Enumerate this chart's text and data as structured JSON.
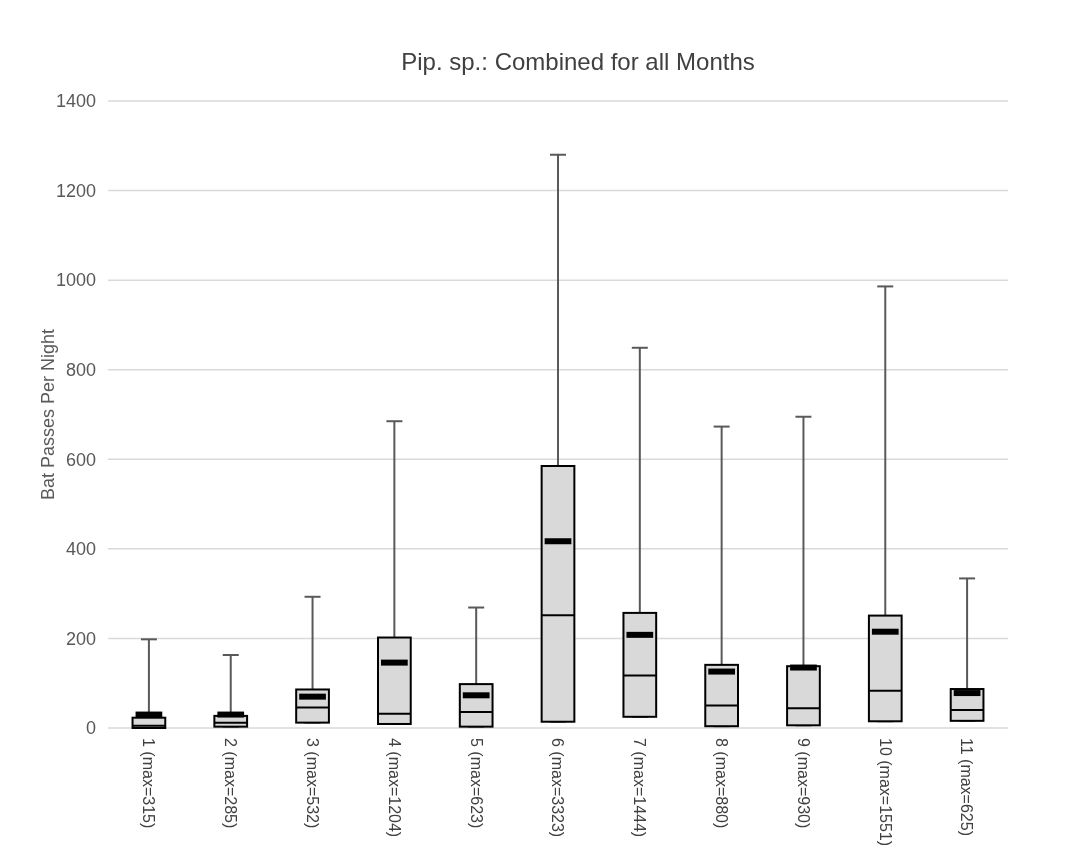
{
  "chart_data": {
    "type": "box",
    "title": "Pip. sp.: Combined for all Months",
    "ylabel": "Bat Passes Per Night",
    "categories": [
      "1 (max=315)",
      "2 (max=285)",
      "3 (max=532)",
      "4 (max=1204)",
      "5 (max=623)",
      "6 (max=3323)",
      "7 (max=1444)",
      "8 (max=880)",
      "9 (max=930)",
      "10 (max=1551)",
      "11 (max=625)"
    ],
    "boxes": [
      {
        "low": 0,
        "q1": 0,
        "median": 5,
        "q3": 23,
        "high": 198,
        "mean": 30
      },
      {
        "low": 3,
        "q1": 3,
        "median": 12,
        "q3": 27,
        "high": 163,
        "mean": 30
      },
      {
        "low": 12,
        "q1": 12,
        "median": 46,
        "q3": 86,
        "high": 293,
        "mean": 70
      },
      {
        "low": 9,
        "q1": 9,
        "median": 32,
        "q3": 202,
        "high": 685,
        "mean": 146
      },
      {
        "low": 3,
        "q1": 3,
        "median": 36,
        "q3": 98,
        "high": 269,
        "mean": 73
      },
      {
        "low": 14,
        "q1": 14,
        "median": 252,
        "q3": 585,
        "high": 1280,
        "mean": 417
      },
      {
        "low": 25,
        "q1": 25,
        "median": 117,
        "q3": 257,
        "high": 849,
        "mean": 208
      },
      {
        "low": 4,
        "q1": 4,
        "median": 50,
        "q3": 141,
        "high": 673,
        "mean": 126
      },
      {
        "low": 6,
        "q1": 6,
        "median": 44,
        "q3": 138,
        "high": 695,
        "mean": 135
      },
      {
        "low": 15,
        "q1": 15,
        "median": 83,
        "q3": 251,
        "high": 986,
        "mean": 215
      },
      {
        "low": 16,
        "q1": 16,
        "median": 40,
        "q3": 87,
        "high": 334,
        "mean": 78
      }
    ],
    "color": "#d9d9d9",
    "ylim": [
      0,
      1400
    ],
    "yticks": [
      0,
      200,
      400,
      600,
      800,
      1000,
      1200,
      1400
    ],
    "grid": "y"
  }
}
